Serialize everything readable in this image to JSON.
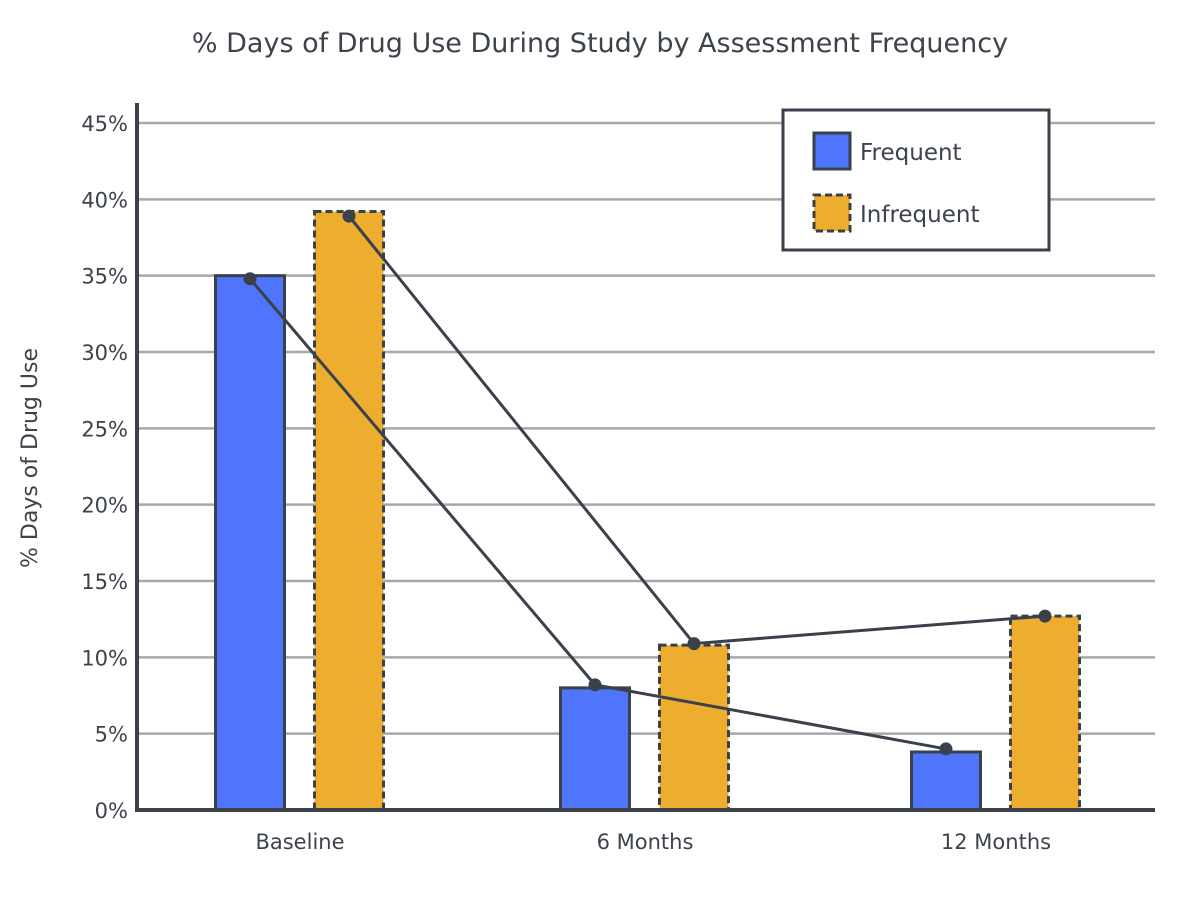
{
  "chart_data": {
    "type": "bar",
    "title": "% Days of Drug Use During Study by Assessment Frequency",
    "xlabel": "",
    "ylabel": "% Days of Drug Use",
    "categories": [
      "Baseline",
      "6 Months",
      "12 Months"
    ],
    "series": [
      {
        "name": "Frequent",
        "values": [
          35.0,
          8.0,
          3.8
        ]
      },
      {
        "name": "Infrequent",
        "values": [
          39.2,
          10.8,
          12.7
        ]
      }
    ],
    "line_points": [
      {
        "name": "Frequent",
        "values": [
          34.8,
          8.2,
          4.0
        ]
      },
      {
        "name": "Infrequent",
        "values": [
          38.9,
          10.9,
          12.7
        ]
      }
    ],
    "ylim": [
      0,
      45
    ],
    "yticks": [
      0,
      5,
      10,
      15,
      20,
      25,
      30,
      35,
      40,
      45
    ],
    "ytick_labels": [
      "0%",
      "5%",
      "10%",
      "15%",
      "20%",
      "25%",
      "30%",
      "35%",
      "40%",
      "45%"
    ],
    "grid": true,
    "legend_position": "top-right",
    "colors": {
      "Frequent": "#5075fd",
      "Infrequent": "#edae30",
      "outline": "#3a414a",
      "grid": "#a8a8a8",
      "text": "#3d434b"
    }
  }
}
